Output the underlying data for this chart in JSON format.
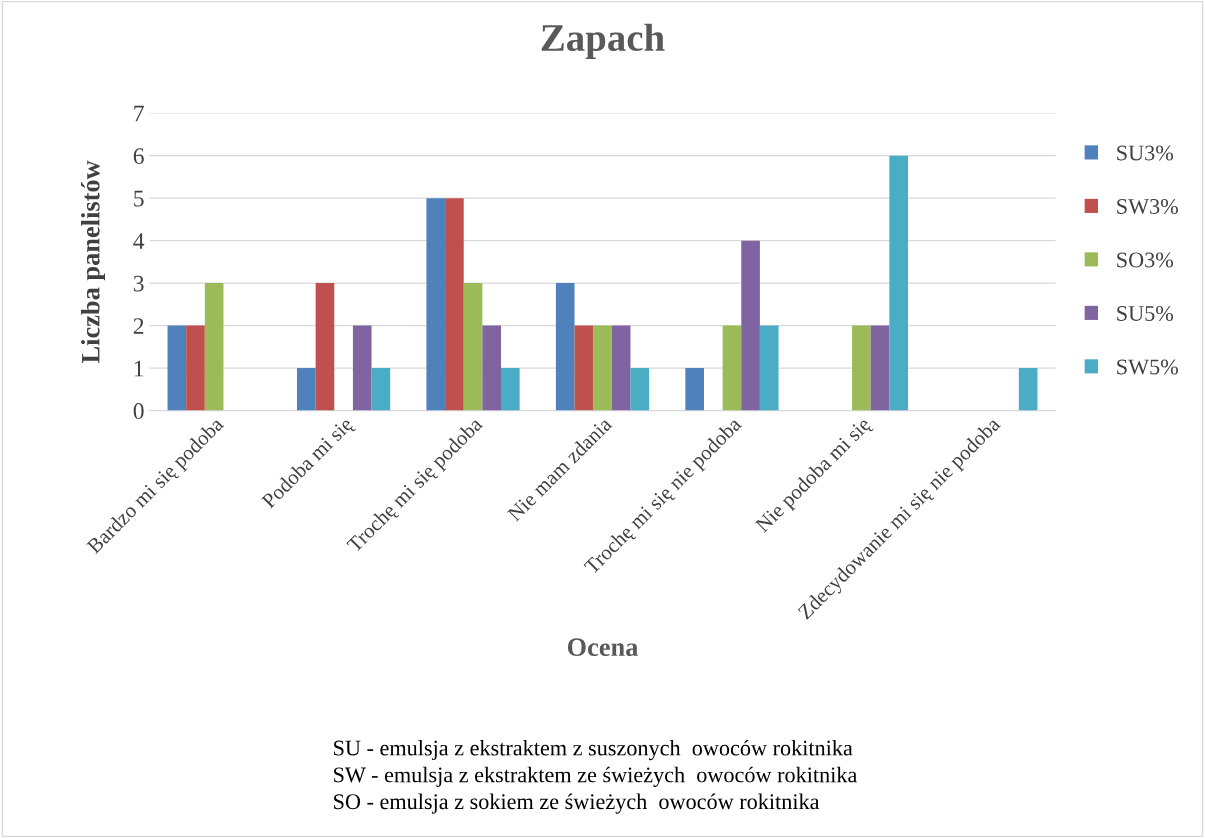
{
  "chart_data": {
    "type": "bar",
    "title": "Zapach",
    "xlabel": "Ocena",
    "ylabel": "Liczba panelistów",
    "categories": [
      "Bardzo mi się podoba",
      "Podoba mi się",
      "Trochę mi się podoba",
      "Nie mam zdania",
      "Trochę mi się nie podoba",
      "Nie podoba mi się",
      "Zdecydowanie mi się nie podoba"
    ],
    "series": [
      {
        "name": "SU3%",
        "color": "#4f81bd",
        "values": [
          2,
          1,
          5,
          3,
          1,
          0,
          0
        ]
      },
      {
        "name": "SW3%",
        "color": "#c0504d",
        "values": [
          2,
          3,
          5,
          2,
          0,
          0,
          0
        ]
      },
      {
        "name": "SO3%",
        "color": "#9bbb59",
        "values": [
          3,
          0,
          3,
          2,
          2,
          2,
          0
        ]
      },
      {
        "name": "SU5%",
        "color": "#8064a2",
        "values": [
          0,
          2,
          2,
          2,
          4,
          2,
          0
        ]
      },
      {
        "name": "SW5%",
        "color": "#4bacc6",
        "values": [
          0,
          1,
          1,
          1,
          2,
          6,
          1
        ]
      }
    ],
    "ylim": [
      0,
      7
    ],
    "yticks": [
      0,
      1,
      2,
      3,
      4,
      5,
      6,
      7
    ],
    "grid": "y",
    "legend": "right",
    "annotations": [
      "SU - emulsja z ekstraktem z suszonych  owoców rokitnika",
      "SW - emulsja z ekstraktem ze świeżych  owoców rokitnika",
      "SO - emulsja z sokiem ze świeżych  owoców rokitnika"
    ]
  }
}
